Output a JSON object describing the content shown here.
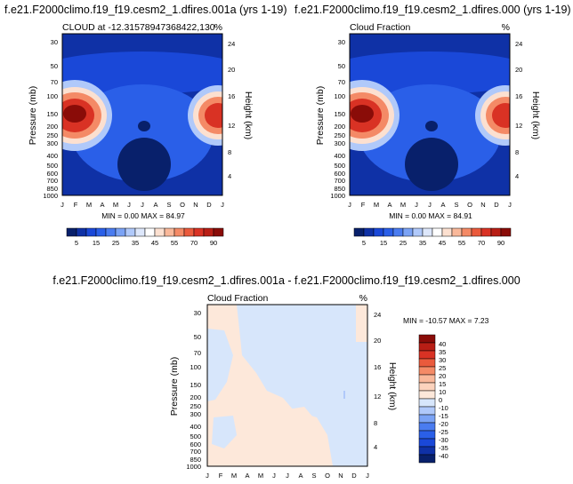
{
  "chart_data": [
    {
      "type": "heatmap",
      "panel": "top-left",
      "title": "f.e21.F2000climo.f19_f19.cesm2_1.dfires.001a (yrs 1-19)",
      "left_title": "CLOUD at -12.31578947368422,130",
      "units": "%",
      "xlabel": "",
      "ylabel": "Pressure (mb)",
      "y2label": "Height (km)",
      "x_ticks": [
        "J",
        "F",
        "M",
        "A",
        "M",
        "J",
        "J",
        "A",
        "S",
        "O",
        "N",
        "D",
        "J"
      ],
      "y_ticks": [
        "30",
        "50",
        "70",
        "100",
        "150",
        "200",
        "250",
        "300",
        "400",
        "500",
        "600",
        "700",
        "850",
        "1000"
      ],
      "y2_ticks": [
        "24",
        "20",
        "16",
        "12",
        "8",
        "4"
      ],
      "min_label": "MIN =  0.00 MAX = 84.97",
      "colorbar": {
        "orientation": "horizontal",
        "labels": [
          "5",
          "15",
          "25",
          "35",
          "45",
          "55",
          "70",
          "90"
        ],
        "colors": [
          "#08206b",
          "#0f31a6",
          "#1a48d8",
          "#2a5fe8",
          "#4a7cf0",
          "#7ba3f5",
          "#b0c9fa",
          "#dde7fb",
          "#ffffff",
          "#fce0d0",
          "#f9b89a",
          "#f48a66",
          "#ea5a3c",
          "#d93224",
          "#b81e15",
          "#8a0c08"
        ]
      },
      "min": 0.0,
      "max": 84.97,
      "description_values": {
        "upper_max_months": [
          "J",
          "F",
          "D"
        ],
        "upper_max_pressure_mb": 150,
        "upper_max_value": 84.97
      }
    },
    {
      "type": "heatmap",
      "panel": "top-right",
      "title": "f.e21.F2000climo.f19_f19.cesm2_1.dfires.000 (yrs 1-19)",
      "left_title": "Cloud Fraction",
      "units": "%",
      "xlabel": "",
      "ylabel": "Pressure (mb)",
      "y2label": "Height (km)",
      "x_ticks": [
        "J",
        "F",
        "M",
        "A",
        "M",
        "J",
        "J",
        "A",
        "S",
        "O",
        "N",
        "D",
        "J"
      ],
      "y_ticks": [
        "30",
        "50",
        "70",
        "100",
        "150",
        "200",
        "250",
        "300",
        "400",
        "500",
        "600",
        "700",
        "850",
        "1000"
      ],
      "y2_ticks": [
        "24",
        "20",
        "16",
        "12",
        "8",
        "4"
      ],
      "min_label": "MIN =  0.00 MAX = 84.91",
      "colorbar": {
        "orientation": "horizontal",
        "labels": [
          "5",
          "15",
          "25",
          "35",
          "45",
          "55",
          "70",
          "90"
        ],
        "colors": [
          "#08206b",
          "#0f31a6",
          "#1a48d8",
          "#2a5fe8",
          "#4a7cf0",
          "#7ba3f5",
          "#b0c9fa",
          "#dde7fb",
          "#ffffff",
          "#fce0d0",
          "#f9b89a",
          "#f48a66",
          "#ea5a3c",
          "#d93224",
          "#b81e15",
          "#8a0c08"
        ]
      },
      "min": 0.0,
      "max": 84.91
    },
    {
      "type": "heatmap",
      "panel": "bottom-difference",
      "title": "f.e21.F2000climo.f19_f19.cesm2_1.dfires.001a - f.e21.F2000climo.f19_f19.cesm2_1.dfires.000",
      "left_title": "Cloud Fraction",
      "units": "%",
      "xlabel": "",
      "ylabel": "Pressure (mb)",
      "y2label": "Height (km)",
      "x_ticks": [
        "J",
        "F",
        "M",
        "A",
        "M",
        "J",
        "J",
        "A",
        "S",
        "O",
        "N",
        "D",
        "J"
      ],
      "y_ticks": [
        "30",
        "50",
        "70",
        "100",
        "150",
        "200",
        "250",
        "300",
        "400",
        "500",
        "600",
        "700",
        "850",
        "1000"
      ],
      "y2_ticks": [
        "24",
        "20",
        "16",
        "12",
        "8",
        "4"
      ],
      "min_label": "MIN = -10.57 MAX =   7.23",
      "colorbar": {
        "orientation": "vertical",
        "labels": [
          "40",
          "35",
          "30",
          "25",
          "20",
          "15",
          "10",
          "0",
          "-10",
          "-15",
          "-20",
          "-25",
          "-30",
          "-35",
          "-40"
        ],
        "colors": [
          "#8a0c08",
          "#b81e15",
          "#d93224",
          "#ea5a3c",
          "#f48a66",
          "#f9b89a",
          "#fcd3bd",
          "#fde8da",
          "#d7e6fb",
          "#b0c9fa",
          "#7ba3f5",
          "#4a7cf0",
          "#2a5fe8",
          "#1a48d8",
          "#0f31a6",
          "#08206b"
        ]
      },
      "min": -10.57,
      "max": 7.23,
      "fill_colors": {
        "positive": "#fde8da",
        "negative": "#d7e6fb"
      }
    }
  ]
}
